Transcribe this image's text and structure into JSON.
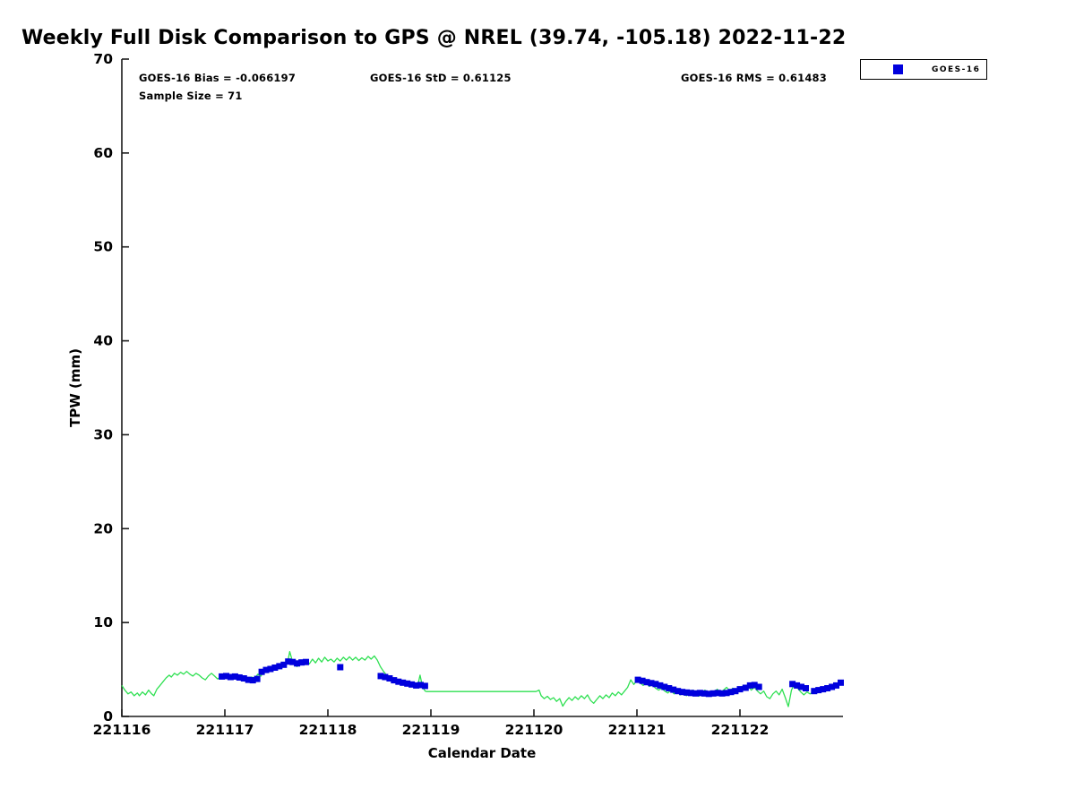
{
  "title": "Weekly Full Disk Comparison to GPS @ NREL (39.74, -105.18) 2022-11-22",
  "annotations": {
    "bias": "GOES-16 Bias = -0.066197",
    "std": "GOES-16 StD = 0.61125",
    "rms": "GOES-16 RMS = 0.61483",
    "sample": "Sample Size = 71"
  },
  "legend": {
    "items": [
      {
        "label": "GOES-16",
        "marker": "square",
        "color": "#0000DD"
      }
    ]
  },
  "chart_data": {
    "type": "line",
    "title": "Weekly Full Disk Comparison to GPS @ NREL (39.74, -105.18) 2022-11-22",
    "xlabel": "Calendar Date",
    "ylabel": "TPW (mm)",
    "ylim": [
      0,
      70
    ],
    "yticks": [
      0,
      10,
      20,
      30,
      40,
      50,
      60,
      70
    ],
    "x_span_days": 7,
    "xtick_days": [
      0,
      1,
      2,
      3,
      4,
      5,
      6
    ],
    "xtick_labels": [
      "221116",
      "221117",
      "221118",
      "221119",
      "221120",
      "221121",
      "221122"
    ],
    "grid": false,
    "legend_position": "top-right",
    "axis_color": "#1a1a1a",
    "series": [
      {
        "name": "GPS",
        "type": "line",
        "color": "#2FE052",
        "points": [
          [
            0.0,
            3.3
          ],
          [
            0.03,
            2.8
          ],
          [
            0.06,
            2.4
          ],
          [
            0.09,
            2.6
          ],
          [
            0.12,
            2.2
          ],
          [
            0.15,
            2.5
          ],
          [
            0.17,
            2.2
          ],
          [
            0.2,
            2.6
          ],
          [
            0.23,
            2.3
          ],
          [
            0.26,
            2.8
          ],
          [
            0.29,
            2.4
          ],
          [
            0.31,
            2.2
          ],
          [
            0.34,
            2.9
          ],
          [
            0.37,
            3.3
          ],
          [
            0.4,
            3.7
          ],
          [
            0.43,
            4.1
          ],
          [
            0.46,
            4.4
          ],
          [
            0.48,
            4.2
          ],
          [
            0.51,
            4.6
          ],
          [
            0.54,
            4.4
          ],
          [
            0.57,
            4.7
          ],
          [
            0.6,
            4.5
          ],
          [
            0.63,
            4.8
          ],
          [
            0.66,
            4.5
          ],
          [
            0.69,
            4.3
          ],
          [
            0.72,
            4.6
          ],
          [
            0.75,
            4.4
          ],
          [
            0.78,
            4.1
          ],
          [
            0.81,
            3.9
          ],
          [
            0.84,
            4.3
          ],
          [
            0.87,
            4.6
          ],
          [
            0.9,
            4.3
          ],
          [
            0.93,
            4.0
          ],
          [
            0.96,
            4.2
          ],
          [
            0.99,
            4.1
          ],
          [
            1.02,
            4.3
          ],
          [
            1.05,
            4.0
          ],
          [
            1.08,
            4.25
          ],
          [
            1.11,
            4.1
          ],
          [
            1.14,
            4.3
          ],
          [
            1.17,
            3.95
          ],
          [
            1.2,
            4.15
          ],
          [
            1.23,
            3.75
          ],
          [
            1.26,
            4.2
          ],
          [
            1.29,
            4.05
          ],
          [
            1.32,
            4.5
          ],
          [
            1.35,
            4.3
          ],
          [
            1.38,
            4.9
          ],
          [
            1.41,
            4.7
          ],
          [
            1.44,
            5.1
          ],
          [
            1.47,
            4.9
          ],
          [
            1.5,
            5.3
          ],
          [
            1.53,
            5.1
          ],
          [
            1.56,
            5.5
          ],
          [
            1.59,
            5.8
          ],
          [
            1.617,
            6.2
          ],
          [
            1.63,
            6.9
          ],
          [
            1.65,
            6.1
          ],
          [
            1.68,
            5.6
          ],
          [
            1.7,
            5.3
          ],
          [
            1.73,
            5.8
          ],
          [
            1.76,
            5.5
          ],
          [
            1.79,
            5.9
          ],
          [
            1.82,
            5.6
          ],
          [
            1.85,
            6.1
          ],
          [
            1.88,
            5.7
          ],
          [
            1.91,
            6.2
          ],
          [
            1.94,
            5.8
          ],
          [
            1.97,
            6.3
          ],
          [
            2.0,
            5.9
          ],
          [
            2.03,
            6.1
          ],
          [
            2.06,
            5.8
          ],
          [
            2.09,
            6.2
          ],
          [
            2.12,
            5.9
          ],
          [
            2.15,
            6.3
          ],
          [
            2.18,
            6.0
          ],
          [
            2.21,
            6.35
          ],
          [
            2.24,
            6.0
          ],
          [
            2.27,
            6.3
          ],
          [
            2.3,
            5.95
          ],
          [
            2.33,
            6.25
          ],
          [
            2.36,
            6.0
          ],
          [
            2.39,
            6.4
          ],
          [
            2.42,
            6.1
          ],
          [
            2.45,
            6.45
          ],
          [
            2.48,
            6.0
          ],
          [
            2.51,
            5.3
          ],
          [
            2.54,
            4.8
          ],
          [
            2.57,
            4.4
          ],
          [
            2.6,
            4.0
          ],
          [
            2.63,
            3.8
          ],
          [
            2.66,
            4.0
          ],
          [
            2.69,
            3.7
          ],
          [
            2.72,
            3.5
          ],
          [
            2.75,
            3.7
          ],
          [
            2.78,
            3.4
          ],
          [
            2.81,
            3.6
          ],
          [
            2.84,
            3.3
          ],
          [
            2.87,
            3.2
          ],
          [
            2.895,
            4.4
          ],
          [
            2.92,
            3.1
          ],
          [
            2.945,
            2.7
          ],
          [
            2.96,
            2.65
          ],
          [
            4.02,
            2.65
          ],
          [
            4.05,
            2.8
          ],
          [
            4.07,
            2.2
          ],
          [
            4.1,
            1.9
          ],
          [
            4.13,
            2.15
          ],
          [
            4.16,
            1.8
          ],
          [
            4.19,
            2.0
          ],
          [
            4.22,
            1.6
          ],
          [
            4.25,
            1.9
          ],
          [
            4.28,
            1.1
          ],
          [
            4.31,
            1.6
          ],
          [
            4.34,
            2.0
          ],
          [
            4.37,
            1.7
          ],
          [
            4.4,
            2.1
          ],
          [
            4.43,
            1.8
          ],
          [
            4.46,
            2.2
          ],
          [
            4.49,
            1.9
          ],
          [
            4.52,
            2.3
          ],
          [
            4.55,
            1.7
          ],
          [
            4.58,
            1.4
          ],
          [
            4.61,
            1.8
          ],
          [
            4.64,
            2.2
          ],
          [
            4.67,
            1.9
          ],
          [
            4.7,
            2.3
          ],
          [
            4.73,
            2.0
          ],
          [
            4.76,
            2.5
          ],
          [
            4.79,
            2.2
          ],
          [
            4.82,
            2.6
          ],
          [
            4.85,
            2.3
          ],
          [
            4.88,
            2.7
          ],
          [
            4.91,
            3.1
          ],
          [
            4.94,
            3.9
          ],
          [
            4.97,
            3.4
          ],
          [
            5.0,
            3.85
          ],
          [
            5.03,
            3.6
          ],
          [
            5.06,
            3.3
          ],
          [
            5.09,
            3.6
          ],
          [
            5.12,
            3.2
          ],
          [
            5.15,
            3.4
          ],
          [
            5.18,
            3.0
          ],
          [
            5.21,
            2.8
          ],
          [
            5.24,
            3.0
          ],
          [
            5.27,
            2.7
          ],
          [
            5.3,
            2.5
          ],
          [
            5.33,
            2.8
          ],
          [
            5.36,
            2.4
          ],
          [
            5.39,
            2.7
          ],
          [
            5.42,
            2.3
          ],
          [
            5.45,
            2.6
          ],
          [
            5.48,
            2.2
          ],
          [
            5.51,
            2.5
          ],
          [
            5.54,
            2.8
          ],
          [
            5.57,
            2.4
          ],
          [
            5.6,
            2.15
          ],
          [
            5.63,
            2.5
          ],
          [
            5.66,
            2.8
          ],
          [
            5.69,
            2.45
          ],
          [
            5.72,
            2.2
          ],
          [
            5.75,
            2.6
          ],
          [
            5.78,
            2.9
          ],
          [
            5.81,
            2.5
          ],
          [
            5.84,
            2.8
          ],
          [
            5.87,
            3.1
          ],
          [
            5.9,
            2.7
          ],
          [
            5.93,
            3.0
          ],
          [
            5.96,
            2.6
          ],
          [
            5.99,
            2.9
          ],
          [
            6.02,
            3.2
          ],
          [
            6.05,
            2.9
          ],
          [
            6.08,
            3.2
          ],
          [
            6.11,
            2.8
          ],
          [
            6.14,
            3.1
          ],
          [
            6.17,
            2.7
          ],
          [
            6.2,
            2.4
          ],
          [
            6.23,
            2.7
          ],
          [
            6.26,
            2.1
          ],
          [
            6.29,
            1.9
          ],
          [
            6.32,
            2.4
          ],
          [
            6.35,
            2.7
          ],
          [
            6.38,
            2.3
          ],
          [
            6.41,
            2.9
          ],
          [
            6.44,
            2.0
          ],
          [
            6.47,
            1.05
          ],
          [
            6.5,
            2.8
          ],
          [
            6.53,
            3.5
          ],
          [
            6.56,
            3.0
          ],
          [
            6.59,
            2.6
          ],
          [
            6.62,
            2.3
          ],
          [
            6.65,
            2.6
          ],
          [
            6.68,
            2.4
          ],
          [
            6.71,
            2.6
          ],
          [
            6.74,
            2.85
          ],
          [
            6.77,
            2.7
          ],
          [
            6.8,
            3.0
          ],
          [
            6.83,
            3.2
          ],
          [
            6.86,
            2.95
          ],
          [
            6.89,
            3.25
          ],
          [
            6.92,
            3.1
          ],
          [
            6.95,
            3.45
          ],
          [
            6.98,
            3.6
          ],
          [
            7.0,
            3.35
          ]
        ]
      },
      {
        "name": "GOES-16",
        "type": "scatter",
        "marker": "square",
        "color": "#0000DD",
        "points": [
          [
            0.97,
            4.25
          ],
          [
            1.013,
            4.3
          ],
          [
            1.056,
            4.2
          ],
          [
            1.099,
            4.25
          ],
          [
            1.142,
            4.15
          ],
          [
            1.185,
            4.05
          ],
          [
            1.228,
            3.9
          ],
          [
            1.271,
            3.85
          ],
          [
            1.314,
            4.0
          ],
          [
            1.357,
            4.75
          ],
          [
            1.4,
            4.95
          ],
          [
            1.443,
            5.05
          ],
          [
            1.486,
            5.2
          ],
          [
            1.529,
            5.35
          ],
          [
            1.572,
            5.5
          ],
          [
            1.615,
            5.85
          ],
          [
            1.658,
            5.8
          ],
          [
            1.701,
            5.65
          ],
          [
            1.744,
            5.75
          ],
          [
            1.787,
            5.8
          ],
          [
            2.12,
            5.25
          ],
          [
            2.513,
            4.3
          ],
          [
            2.556,
            4.2
          ],
          [
            2.599,
            4.05
          ],
          [
            2.642,
            3.85
          ],
          [
            2.685,
            3.7
          ],
          [
            2.728,
            3.6
          ],
          [
            2.771,
            3.5
          ],
          [
            2.814,
            3.4
          ],
          [
            2.857,
            3.3
          ],
          [
            2.9,
            3.35
          ],
          [
            2.943,
            3.25
          ],
          [
            5.01,
            3.9
          ],
          [
            5.053,
            3.8
          ],
          [
            5.096,
            3.65
          ],
          [
            5.139,
            3.55
          ],
          [
            5.182,
            3.45
          ],
          [
            5.225,
            3.3
          ],
          [
            5.268,
            3.15
          ],
          [
            5.311,
            3.0
          ],
          [
            5.354,
            2.85
          ],
          [
            5.397,
            2.7
          ],
          [
            5.44,
            2.6
          ],
          [
            5.483,
            2.55
          ],
          [
            5.526,
            2.5
          ],
          [
            5.569,
            2.45
          ],
          [
            5.612,
            2.5
          ],
          [
            5.655,
            2.45
          ],
          [
            5.698,
            2.4
          ],
          [
            5.741,
            2.45
          ],
          [
            5.784,
            2.5
          ],
          [
            5.827,
            2.45
          ],
          [
            5.87,
            2.5
          ],
          [
            5.913,
            2.6
          ],
          [
            5.956,
            2.7
          ],
          [
            6.0,
            2.9
          ],
          [
            6.055,
            3.05
          ],
          [
            6.098,
            3.3
          ],
          [
            6.141,
            3.35
          ],
          [
            6.184,
            3.15
          ],
          [
            6.51,
            3.45
          ],
          [
            6.553,
            3.3
          ],
          [
            6.596,
            3.15
          ],
          [
            6.639,
            3.0
          ],
          [
            6.72,
            2.7
          ],
          [
            6.763,
            2.8
          ],
          [
            6.806,
            2.9
          ],
          [
            6.849,
            3.0
          ],
          [
            6.892,
            3.15
          ],
          [
            6.935,
            3.3
          ],
          [
            6.978,
            3.6
          ]
        ]
      }
    ]
  }
}
